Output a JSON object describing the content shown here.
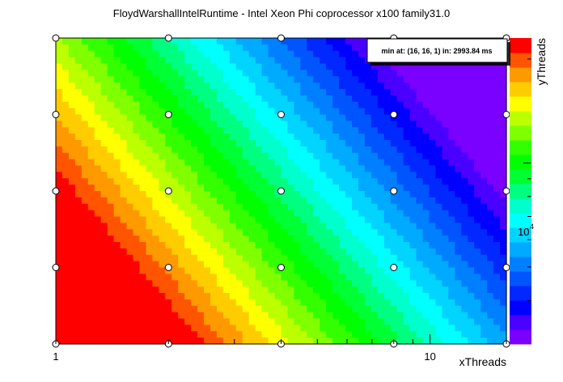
{
  "chart_data": {
    "type": "heatmap",
    "title": "FloydWarshallIntelRuntime - Intel Xeon Phi coprocessor x100 family31.0",
    "xlabel": "xThreads",
    "ylabel": "yThreads",
    "x_scale": "log",
    "y_scale": "log",
    "z_scale": "log",
    "xlim": [
      1,
      16
    ],
    "ylim": [
      1,
      16
    ],
    "x_ticks": [
      {
        "value": 1,
        "label": "1"
      },
      {
        "value": 10,
        "label": "10"
      }
    ],
    "z_tick_label": "10",
    "z_tick_exponent": "4",
    "z_tick_value": 10000,
    "z_range": [
      2993.84,
      23000
    ],
    "sample_x": [
      1,
      2,
      4,
      8,
      16
    ],
    "sample_y": [
      1,
      2,
      4,
      8,
      16
    ],
    "z_min": 2993.84,
    "annotation": "min at: (16, 16, 1) in: 2993.84 ms",
    "palette": [
      "#7a00ff",
      "#4a00ff",
      "#0000ff",
      "#0028ff",
      "#0055ff",
      "#0080ff",
      "#00aaff",
      "#00d4ff",
      "#00ffff",
      "#00ffcc",
      "#00ff80",
      "#00ff33",
      "#00ff00",
      "#33ff00",
      "#80ff00",
      "#bbff00",
      "#ffff00",
      "#ffcc00",
      "#ff9900",
      "#ff5500",
      "#ff0000"
    ],
    "grid": false,
    "legend": "color-bar-right"
  }
}
